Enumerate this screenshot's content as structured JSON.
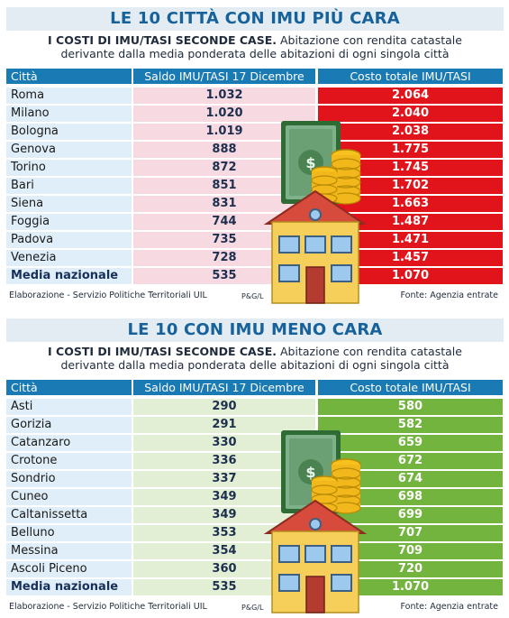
{
  "top": {
    "title": "LE 10 CITTÀ CON IMU PIÙ CARA",
    "subtitle_bold": "I COSTI DI IMU/TASI SECONDE CASE.",
    "subtitle_line1_rest": " Abitazione con rendita catastale",
    "subtitle_line2": "derivante dalla media ponderata delle abitazioni di ogni singola città",
    "headers": [
      "Città",
      "Saldo IMU/TASI 17 Dicembre",
      "Costo totale IMU/TASI"
    ],
    "rows": [
      {
        "city": "Roma",
        "saldo": "1.032",
        "costo": "2.064"
      },
      {
        "city": "Milano",
        "saldo": "1.020",
        "costo": "2.040"
      },
      {
        "city": "Bologna",
        "saldo": "1.019",
        "costo": "2.038"
      },
      {
        "city": "Genova",
        "saldo": "888",
        "costo": "1.775"
      },
      {
        "city": "Torino",
        "saldo": "872",
        "costo": "1.745"
      },
      {
        "city": "Bari",
        "saldo": "851",
        "costo": "1.702"
      },
      {
        "city": "Siena",
        "saldo": "831",
        "costo": "1.663"
      },
      {
        "city": "Foggia",
        "saldo": "744",
        "costo": "1.487"
      },
      {
        "city": "Padova",
        "saldo": "735",
        "costo": "1.471"
      },
      {
        "city": "Venezia",
        "saldo": "728",
        "costo": "1.457"
      },
      {
        "city": "Media nazionale",
        "saldo": "535",
        "costo": "1.070"
      }
    ],
    "footer_left": "Elaborazione - Servizio Politiche Territoriali UIL",
    "footer_mid": "P&G/L",
    "footer_right": "Fonte: Agenzia entrate"
  },
  "bottom": {
    "title": "LE 10 CON IMU MENO CARA",
    "subtitle_bold": "I COSTI DI IMU/TASI SECONDE CASE.",
    "subtitle_line1_rest": " Abitazione con rendita catastale",
    "subtitle_line2": "derivante dalla media ponderata delle abitazioni di ogni singola città",
    "headers": [
      "Città",
      "Saldo IMU/TASI 17 Dicembre",
      "Costo totale IMU/TASI"
    ],
    "rows": [
      {
        "city": "Asti",
        "saldo": "290",
        "costo": "580"
      },
      {
        "city": "Gorizia",
        "saldo": "291",
        "costo": "582"
      },
      {
        "city": "Catanzaro",
        "saldo": "330",
        "costo": "659"
      },
      {
        "city": "Crotone",
        "saldo": "336",
        "costo": "672"
      },
      {
        "city": "Sondrio",
        "saldo": "337",
        "costo": "674"
      },
      {
        "city": "Cuneo",
        "saldo": "349",
        "costo": "698"
      },
      {
        "city": "Caltanissetta",
        "saldo": "349",
        "costo": "699"
      },
      {
        "city": "Belluno",
        "saldo": "353",
        "costo": "707"
      },
      {
        "city": "Messina",
        "saldo": "354",
        "costo": "709"
      },
      {
        "city": "Ascoli Piceno",
        "saldo": "360",
        "costo": "720"
      },
      {
        "city": "Media nazionale",
        "saldo": "535",
        "costo": "1.070"
      }
    ],
    "footer_left": "Elaborazione - Servizio Politiche Territoriali UIL",
    "footer_mid": "P&G/L",
    "footer_right": "Fonte: Agenzia entrate"
  },
  "colors": {
    "title_text": "#17629a",
    "header_bg": "#1a7ab3",
    "top_cost_bg": "#e2141b",
    "top_saldo_bg": "#f6d9e1",
    "bottom_cost_bg": "#72b43e",
    "bottom_saldo_bg": "#e3efd5",
    "city_bg": "#dfeef8"
  },
  "illustration_icons": [
    "banknote-icon",
    "coin-stack-icon",
    "house-icon"
  ]
}
